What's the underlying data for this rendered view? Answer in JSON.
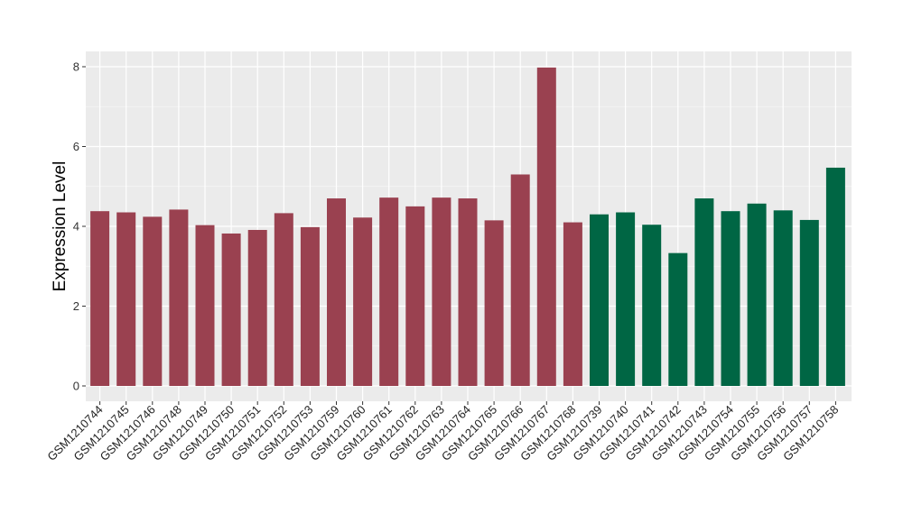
{
  "chart_data": {
    "type": "bar",
    "title": "",
    "xlabel": "",
    "ylabel": "Expression Level",
    "ylim": [
      0,
      8.3
    ],
    "yticks": [
      0,
      2,
      4,
      6,
      8
    ],
    "grid": true,
    "legend": "none",
    "colors": {
      "group_a": "#9a4150",
      "group_b": "#006644",
      "panel_bg": "#ebebeb",
      "grid": "#ffffff"
    },
    "categories": [
      "GSM1210744",
      "GSM1210745",
      "GSM1210746",
      "GSM1210748",
      "GSM1210749",
      "GSM1210750",
      "GSM1210751",
      "GSM1210752",
      "GSM1210753",
      "GSM1210759",
      "GSM1210760",
      "GSM1210761",
      "GSM1210762",
      "GSM1210763",
      "GSM1210764",
      "GSM1210765",
      "GSM1210766",
      "GSM1210767",
      "GSM1210768",
      "GSM1210739",
      "GSM1210740",
      "GSM1210741",
      "GSM1210742",
      "GSM1210743",
      "GSM1210754",
      "GSM1210755",
      "GSM1210756",
      "GSM1210757",
      "GSM1210758"
    ],
    "values": [
      4.38,
      4.35,
      4.24,
      4.42,
      4.03,
      3.82,
      3.91,
      4.33,
      3.98,
      4.7,
      4.22,
      4.72,
      4.5,
      4.72,
      4.7,
      4.15,
      5.3,
      7.98,
      4.1,
      4.3,
      4.35,
      4.04,
      3.33,
      4.7,
      4.38,
      4.57,
      4.4,
      4.16,
      5.47
    ],
    "groups": [
      "a",
      "a",
      "a",
      "a",
      "a",
      "a",
      "a",
      "a",
      "a",
      "a",
      "a",
      "a",
      "a",
      "a",
      "a",
      "a",
      "a",
      "a",
      "a",
      "b",
      "b",
      "b",
      "b",
      "b",
      "b",
      "b",
      "b",
      "b",
      "b"
    ]
  }
}
